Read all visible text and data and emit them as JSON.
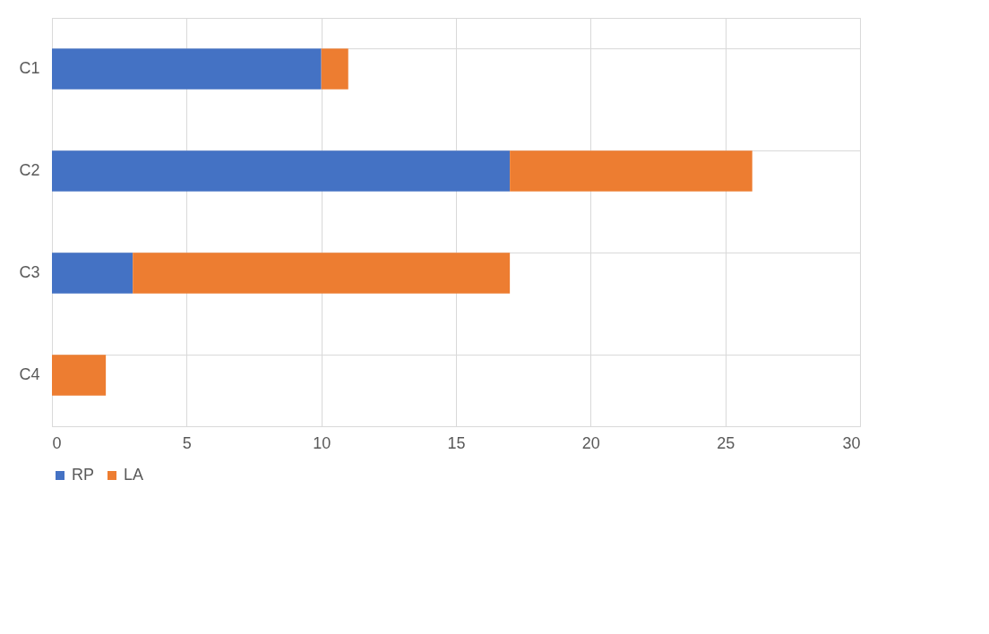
{
  "chart_data": {
    "type": "bar",
    "orientation": "horizontal",
    "stacked": true,
    "categories": [
      "C1",
      "C2",
      "C3",
      "C4"
    ],
    "series": [
      {
        "name": "RP",
        "color": "#4472c4",
        "values": [
          10,
          17,
          3,
          0
        ]
      },
      {
        "name": "LA",
        "color": "#ed7d31",
        "values": [
          1,
          9,
          14,
          2
        ]
      }
    ],
    "xlim": [
      0,
      30
    ],
    "xticks": [
      0,
      5,
      10,
      15,
      20,
      25,
      30
    ],
    "grid": true,
    "legend": "bottom"
  }
}
